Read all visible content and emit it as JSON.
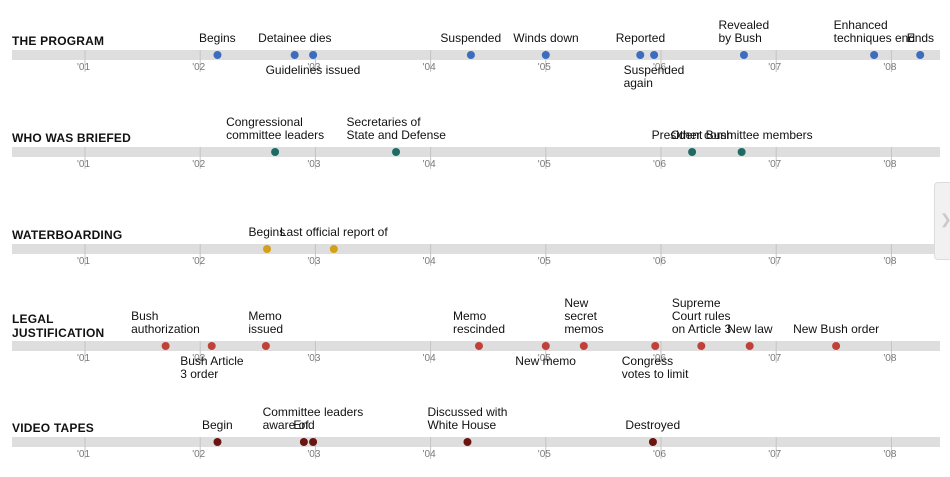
{
  "chart_data": {
    "type": "timeline",
    "x_axis": {
      "ticks": [
        2001,
        2002,
        2003,
        2004,
        2005,
        2006,
        2007,
        2008
      ],
      "tick_labels": [
        "'01",
        "'02",
        "'03",
        "'04",
        "'05",
        "'06",
        "'07",
        "'08"
      ],
      "range": [
        2000.4,
        2008.4
      ]
    },
    "rows": [
      {
        "title": [
          "THE PROGRAM"
        ],
        "color": "#3c6cbf",
        "events": [
          {
            "x": 2002.15,
            "label": [
              "Begins"
            ],
            "pos": "above"
          },
          {
            "x": 2002.82,
            "label": [
              "Detainee dies"
            ],
            "pos": "above"
          },
          {
            "x": 2002.98,
            "label": [
              "Guidelines issued"
            ],
            "pos": "below"
          },
          {
            "x": 2004.35,
            "label": [
              "Suspended"
            ],
            "pos": "above"
          },
          {
            "x": 2005.0,
            "label": [
              "Winds down"
            ],
            "pos": "above"
          },
          {
            "x": 2005.82,
            "label": [
              "Reported"
            ],
            "pos": "above"
          },
          {
            "x": 2005.94,
            "label": [
              "Suspended",
              "again"
            ],
            "pos": "below"
          },
          {
            "x": 2006.72,
            "label": [
              "Revealed",
              "by Bush"
            ],
            "pos": "above"
          },
          {
            "x": 2007.85,
            "label": [
              "Enhanced",
              "techniques end"
            ],
            "pos": "above"
          },
          {
            "x": 2008.25,
            "label": [
              "Ends"
            ],
            "pos": "above"
          }
        ]
      },
      {
        "title": [
          "WHO WAS BRIEFED"
        ],
        "color": "#1e6b63",
        "events": [
          {
            "x": 2002.65,
            "label": [
              "Congressional",
              "committee leaders"
            ],
            "pos": "above"
          },
          {
            "x": 2003.7,
            "label": [
              "Secretaries of",
              "State and Defense"
            ],
            "pos": "above"
          },
          {
            "x": 2006.27,
            "label": [
              "President Bush"
            ],
            "pos": "above"
          },
          {
            "x": 2006.7,
            "label": [
              "Other committee members"
            ],
            "pos": "above"
          }
        ]
      },
      {
        "title": [
          "WATERBOARDING"
        ],
        "color": "#d4a017",
        "events": [
          {
            "x": 2002.58,
            "label": [
              "Begins"
            ],
            "pos": "above"
          },
          {
            "x": 2003.16,
            "label": [
              "Last official report of"
            ],
            "pos": "above"
          }
        ]
      },
      {
        "title": [
          "LEGAL",
          "JUSTIFICATION"
        ],
        "color": "#c0413a",
        "events": [
          {
            "x": 2001.7,
            "label": [
              "Bush",
              "authorization"
            ],
            "pos": "above"
          },
          {
            "x": 2002.1,
            "label": [
              "Bush Article",
              "3 order"
            ],
            "pos": "below"
          },
          {
            "x": 2002.57,
            "label": [
              "Memo",
              "issued"
            ],
            "pos": "above"
          },
          {
            "x": 2004.42,
            "label": [
              "Memo",
              "rescinded"
            ],
            "pos": "above"
          },
          {
            "x": 2005.0,
            "label": [
              "New memo"
            ],
            "pos": "below"
          },
          {
            "x": 2005.33,
            "label": [
              "New",
              "secret",
              "memos"
            ],
            "pos": "above"
          },
          {
            "x": 2005.95,
            "label": [
              "Congress",
              "votes to limit"
            ],
            "pos": "below"
          },
          {
            "x": 2006.35,
            "label": [
              "Supreme",
              "Court rules",
              "on Article 3"
            ],
            "pos": "above"
          },
          {
            "x": 2006.77,
            "label": [
              "New law"
            ],
            "pos": "above"
          },
          {
            "x": 2007.52,
            "label": [
              "New Bush order"
            ],
            "pos": "above"
          }
        ]
      },
      {
        "title": [
          "VIDEO TAPES"
        ],
        "color": "#6b1410",
        "events": [
          {
            "x": 2002.15,
            "label": [
              "Begin"
            ],
            "pos": "above"
          },
          {
            "x": 2002.9,
            "label": [
              "End"
            ],
            "pos": "above"
          },
          {
            "x": 2002.98,
            "label": [
              "Committee leaders",
              "aware of"
            ],
            "pos": "above"
          },
          {
            "x": 2004.32,
            "label": [
              "Discussed with",
              "White House"
            ],
            "pos": "above"
          },
          {
            "x": 2005.93,
            "label": [
              "Destroyed"
            ],
            "pos": "above"
          }
        ]
      }
    ]
  },
  "side_tab": {
    "icon": "chevron-right-icon",
    "glyph": "❯"
  }
}
